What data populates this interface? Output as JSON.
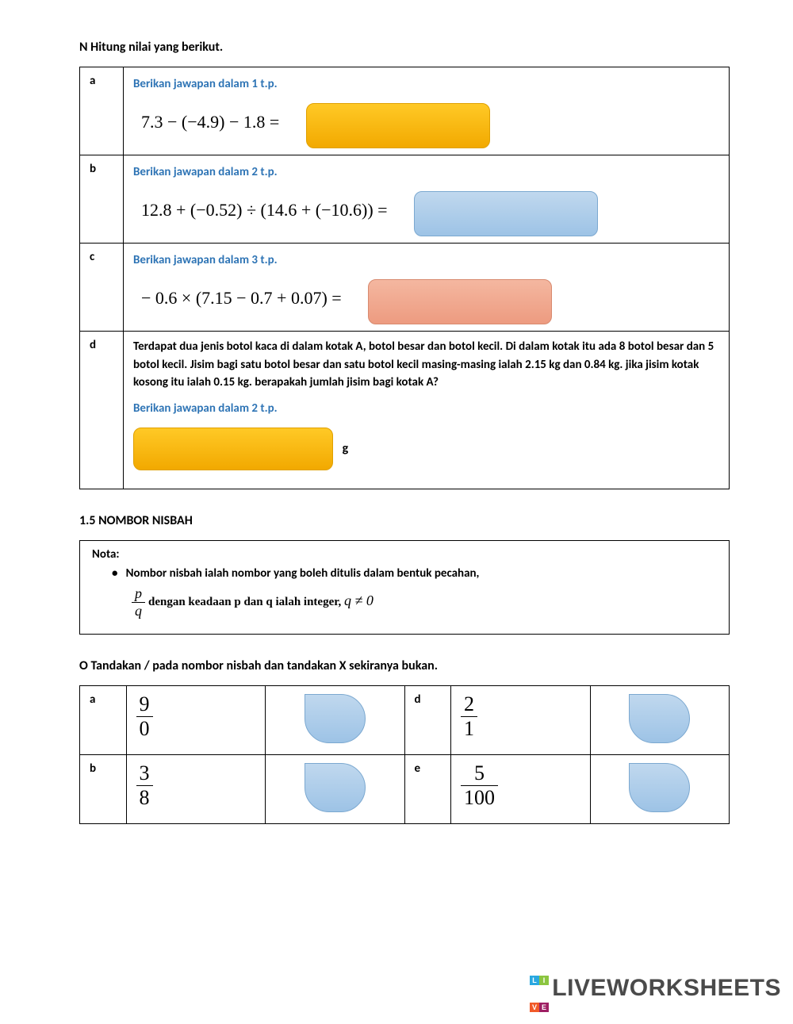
{
  "sectionN": {
    "title": "N  Hitung nilai yang berikut.",
    "rows": [
      {
        "letter": "a",
        "instruction": "Berikan jawapan dalam 1 t.p.",
        "equation": "7.3 − (−4.9) − 1.8 =",
        "box_color": "yellow"
      },
      {
        "letter": "b",
        "instruction": "Berikan jawapan dalam 2 t.p.",
        "equation": "12.8 + (−0.52) ÷ (14.6 + (−10.6)) =",
        "box_color": "blue"
      },
      {
        "letter": "c",
        "instruction": "Berikan jawapan dalam 3 t.p.",
        "equation": "− 0.6 × (7.15 − 0.7 + 0.07) =",
        "box_color": "salmon"
      }
    ],
    "rowD": {
      "letter": "d",
      "problem": "Terdapat dua jenis botol kaca di dalam kotak A, botol besar dan botol kecil. Di dalam kotak itu ada 8 botol besar dan 5 botol kecil. Jisim bagi satu botol besar dan satu botol kecil masing-masing ialah 2.15 kg dan 0.84 kg. jika jisim kotak kosong itu ialah 0.15 kg. berapakah jumlah jisim bagi kotak A?",
      "instruction": "Berikan jawapan dalam 2 t.p.",
      "unit": "g",
      "box_color": "yellow"
    }
  },
  "section15": {
    "title": "1.5 NOMBOR NISBAH",
    "nota_label": "Nota:",
    "bullet": "Nombor nisbah ialah nombor yang boleh ditulis dalam bentuk pecahan,",
    "frac_num": "p",
    "frac_den": "q",
    "cond_text": "  dengan keadaan p dan q ialah integer,  ",
    "cond_math": "q ≠ 0"
  },
  "sectionO": {
    "title": "O  Tandakan / pada nombor nisbah dan tandakan X sekiranya bukan.",
    "cells": [
      {
        "letter": "a",
        "num": "9",
        "den": "0"
      },
      {
        "letter": "d",
        "num": "2",
        "den": "1"
      },
      {
        "letter": "b",
        "num": "3",
        "den": "8"
      },
      {
        "letter": "e",
        "num": "5",
        "den": "100"
      }
    ]
  },
  "watermark": "LIVEWORKSHEETS",
  "colors": {
    "instruction": "#2e74b5",
    "yellow_top": "#ffc926",
    "yellow_bot": "#f2a900",
    "blue_top": "#c0d8ee",
    "blue_bot": "#9dc3e6",
    "salmon_top": "#f4b7a0",
    "salmon_bot": "#ed9b80"
  }
}
